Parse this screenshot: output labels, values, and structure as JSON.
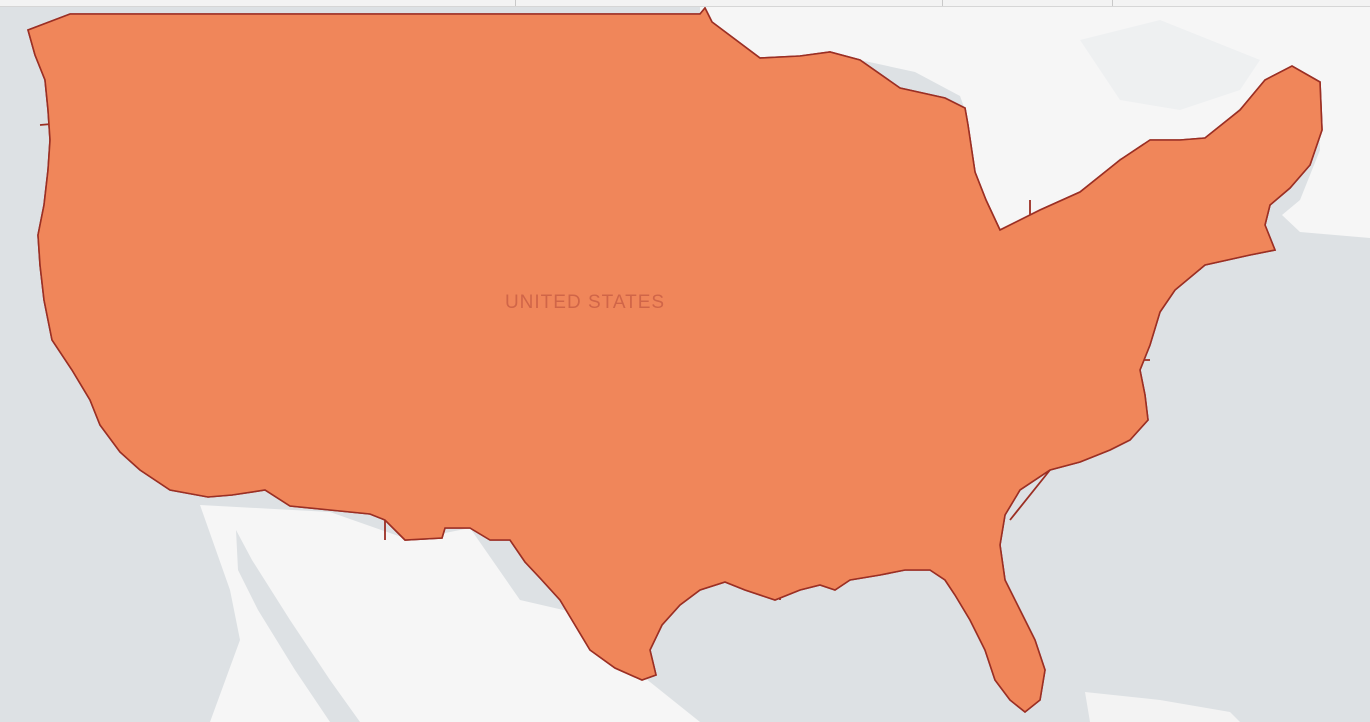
{
  "map": {
    "country_label": "UNITED STATES",
    "colors": {
      "water": "#dde1e4",
      "land_background": "#f5f5f5",
      "state_border": "#9b2f24",
      "county_border": "#c4572f",
      "no_data": "#9a9a9a",
      "scale": [
        "#fff5b8",
        "#fdd88d",
        "#fcb571",
        "#f58d5c",
        "#e9674f",
        "#d14a5a"
      ]
    }
  }
}
